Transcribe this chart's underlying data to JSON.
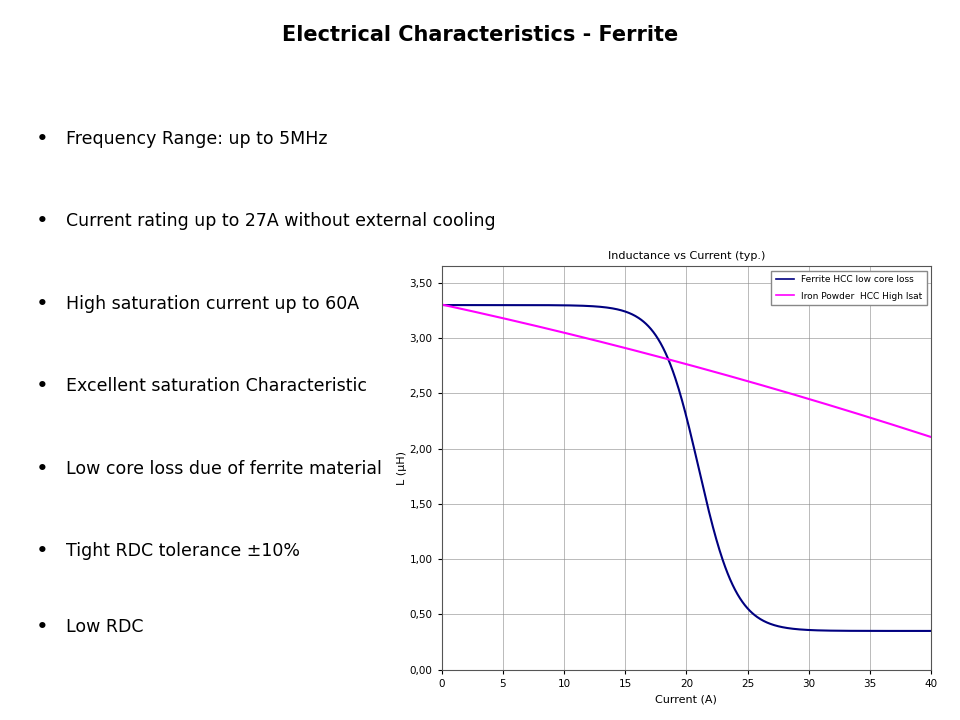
{
  "title": "Electrical Characteristics - Ferrite",
  "title_fontsize": 15,
  "title_fontweight": "bold",
  "bullet_points": [
    "Frequency Range: up to 5MHz",
    "Current rating up to 27A without external cooling",
    "High saturation current up to 60A",
    "Excellent saturation Characteristic",
    "Low core loss due of ferrite material",
    "Tight RDC tolerance ±10%",
    "Low RDC"
  ],
  "bullet_fontsize": 12.5,
  "chart_title": "Inductance vs Current (typ.)",
  "chart_xlabel": "Current (A)",
  "chart_ylabel": "L (µH)",
  "chart_xlim": [
    0,
    40
  ],
  "chart_ylim": [
    0.0,
    3.5
  ],
  "chart_xticks": [
    0,
    5,
    10,
    15,
    20,
    25,
    30,
    35,
    40
  ],
  "chart_yticks": [
    0.0,
    0.5,
    1.0,
    1.5,
    2.0,
    2.5,
    3.0,
    3.5
  ],
  "chart_ytick_labels": [
    "0,00",
    "0,50",
    "1,00",
    "1,50",
    "2,00",
    "2,50",
    "3,00",
    "3,50"
  ],
  "line1_color": "#000080",
  "line1_label": "Ferrite HCC low core loss",
  "line2_color": "#FF00FF",
  "line2_label": "Iron Powder  HCC High Isat",
  "bg_color": "#ffffff",
  "chart_bg_color": "#ffffff",
  "grid_color": "#888888"
}
